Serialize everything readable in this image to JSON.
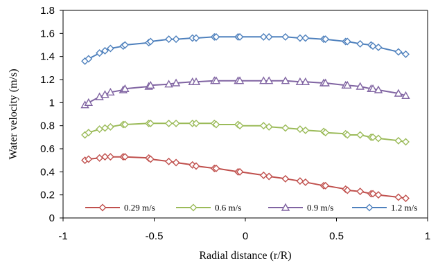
{
  "chart_data": {
    "type": "line",
    "title": "",
    "xlabel": "Radial distance (r/R)",
    "ylabel": "Water velocity (m/s)",
    "xlim": [
      -1,
      1
    ],
    "ylim": [
      0,
      1.8
    ],
    "xticks": [
      -1,
      -0.5,
      0,
      0.5,
      1
    ],
    "xtick_labels": [
      "-1",
      "-0.5",
      "0",
      "0.5",
      "1"
    ],
    "yticks": [
      0,
      0.2,
      0.4,
      0.6,
      0.8,
      1,
      1.2,
      1.4,
      1.6,
      1.8
    ],
    "ytick_labels": [
      "0",
      "0.2",
      "0.4",
      "0.6",
      "0.8",
      "1",
      "1.2",
      "1.4",
      "1.6",
      "1.8"
    ],
    "grid": false,
    "legend_position": "bottom-inside",
    "series": [
      {
        "name": "0.29 m/s",
        "color": "#c0504d",
        "marker": "diamond",
        "x": [
          -0.88,
          -0.86,
          -0.8,
          -0.77,
          -0.74,
          -0.67,
          -0.66,
          -0.53,
          -0.52,
          -0.42,
          -0.38,
          -0.29,
          -0.27,
          -0.17,
          -0.16,
          -0.04,
          -0.03,
          0.1,
          0.13,
          0.22,
          0.3,
          0.33,
          0.43,
          0.44,
          0.55,
          0.56,
          0.63,
          0.69,
          0.7,
          0.73,
          0.84,
          0.88
        ],
        "y": [
          0.5,
          0.51,
          0.52,
          0.53,
          0.53,
          0.53,
          0.53,
          0.52,
          0.51,
          0.49,
          0.48,
          0.46,
          0.45,
          0.43,
          0.43,
          0.4,
          0.4,
          0.37,
          0.36,
          0.34,
          0.32,
          0.31,
          0.28,
          0.28,
          0.25,
          0.24,
          0.23,
          0.21,
          0.21,
          0.2,
          0.18,
          0.17
        ]
      },
      {
        "name": "0.6 m/s",
        "color": "#9bbb59",
        "marker": "diamond",
        "x": [
          -0.88,
          -0.86,
          -0.8,
          -0.77,
          -0.74,
          -0.67,
          -0.66,
          -0.53,
          -0.52,
          -0.42,
          -0.38,
          -0.29,
          -0.27,
          -0.17,
          -0.16,
          -0.04,
          -0.03,
          0.1,
          0.13,
          0.22,
          0.3,
          0.33,
          0.43,
          0.44,
          0.55,
          0.56,
          0.63,
          0.69,
          0.7,
          0.73,
          0.84,
          0.88
        ],
        "y": [
          0.72,
          0.74,
          0.77,
          0.78,
          0.79,
          0.81,
          0.81,
          0.82,
          0.82,
          0.82,
          0.82,
          0.82,
          0.82,
          0.82,
          0.81,
          0.81,
          0.8,
          0.8,
          0.79,
          0.78,
          0.77,
          0.76,
          0.75,
          0.74,
          0.73,
          0.72,
          0.72,
          0.7,
          0.7,
          0.69,
          0.67,
          0.66
        ]
      },
      {
        "name": "0.9 m/s",
        "color": "#8064a2",
        "marker": "triangle",
        "x": [
          -0.88,
          -0.86,
          -0.8,
          -0.77,
          -0.74,
          -0.67,
          -0.66,
          -0.53,
          -0.52,
          -0.42,
          -0.38,
          -0.29,
          -0.27,
          -0.17,
          -0.16,
          -0.04,
          -0.03,
          0.1,
          0.13,
          0.22,
          0.3,
          0.33,
          0.43,
          0.44,
          0.55,
          0.56,
          0.63,
          0.69,
          0.7,
          0.73,
          0.84,
          0.88
        ],
        "y": [
          0.98,
          1.0,
          1.05,
          1.07,
          1.09,
          1.11,
          1.12,
          1.14,
          1.15,
          1.16,
          1.17,
          1.18,
          1.18,
          1.19,
          1.19,
          1.19,
          1.19,
          1.19,
          1.19,
          1.19,
          1.18,
          1.18,
          1.17,
          1.17,
          1.15,
          1.15,
          1.14,
          1.12,
          1.12,
          1.11,
          1.08,
          1.06
        ]
      },
      {
        "name": "1.2 m/s",
        "color": "#4f81bd",
        "marker": "diamond",
        "x": [
          -0.88,
          -0.86,
          -0.8,
          -0.77,
          -0.74,
          -0.67,
          -0.66,
          -0.53,
          -0.52,
          -0.42,
          -0.38,
          -0.29,
          -0.27,
          -0.17,
          -0.16,
          -0.04,
          -0.03,
          0.1,
          0.13,
          0.22,
          0.3,
          0.33,
          0.43,
          0.44,
          0.55,
          0.56,
          0.63,
          0.69,
          0.7,
          0.73,
          0.84,
          0.88
        ],
        "y": [
          1.36,
          1.38,
          1.43,
          1.45,
          1.47,
          1.49,
          1.5,
          1.52,
          1.53,
          1.55,
          1.55,
          1.56,
          1.56,
          1.57,
          1.57,
          1.57,
          1.57,
          1.57,
          1.57,
          1.57,
          1.56,
          1.56,
          1.55,
          1.55,
          1.53,
          1.53,
          1.51,
          1.5,
          1.49,
          1.48,
          1.44,
          1.42
        ]
      }
    ]
  }
}
